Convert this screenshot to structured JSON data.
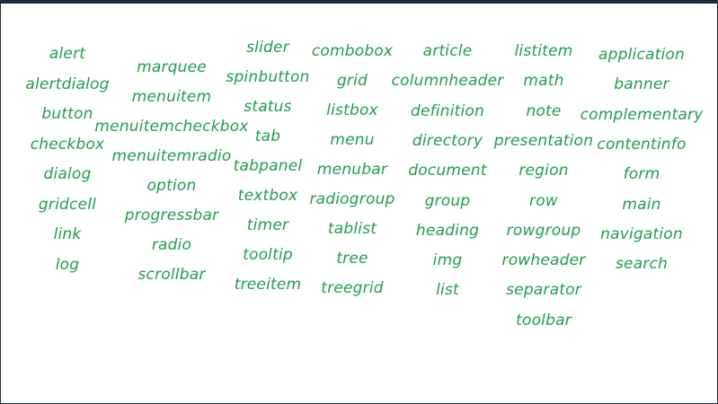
{
  "theme": {
    "word_color": "#1e9e4c"
  },
  "columns": [
    {
      "words": [
        "alert",
        "alertdialog",
        "button",
        "checkbox",
        "dialog",
        "gridcell",
        "link",
        "log"
      ]
    },
    {
      "words": [
        "marquee",
        "menuitem",
        "menuitemcheckbox",
        "menuitemradio",
        "option",
        "progressbar",
        "radio",
        "scrollbar"
      ]
    },
    {
      "words": [
        "slider",
        "spinbutton",
        "status",
        "tab",
        "tabpanel",
        "textbox",
        "timer",
        "tooltip",
        "treeitem"
      ]
    },
    {
      "words": [
        "combobox",
        "grid",
        "listbox",
        "menu",
        "menubar",
        "radiogroup",
        "tablist",
        "tree",
        "treegrid"
      ]
    },
    {
      "words": [
        "article",
        "columnheader",
        "definition",
        "directory",
        "document",
        "group",
        "heading",
        "img",
        "list"
      ]
    },
    {
      "words": [
        "listitem",
        "math",
        "note",
        "presentation",
        "region",
        "row",
        "rowgroup",
        "rowheader",
        "separator",
        "toolbar"
      ]
    },
    {
      "words": [
        "application",
        "banner",
        "complementary",
        "contentinfo",
        "form",
        "main",
        "navigation",
        "search"
      ]
    }
  ]
}
